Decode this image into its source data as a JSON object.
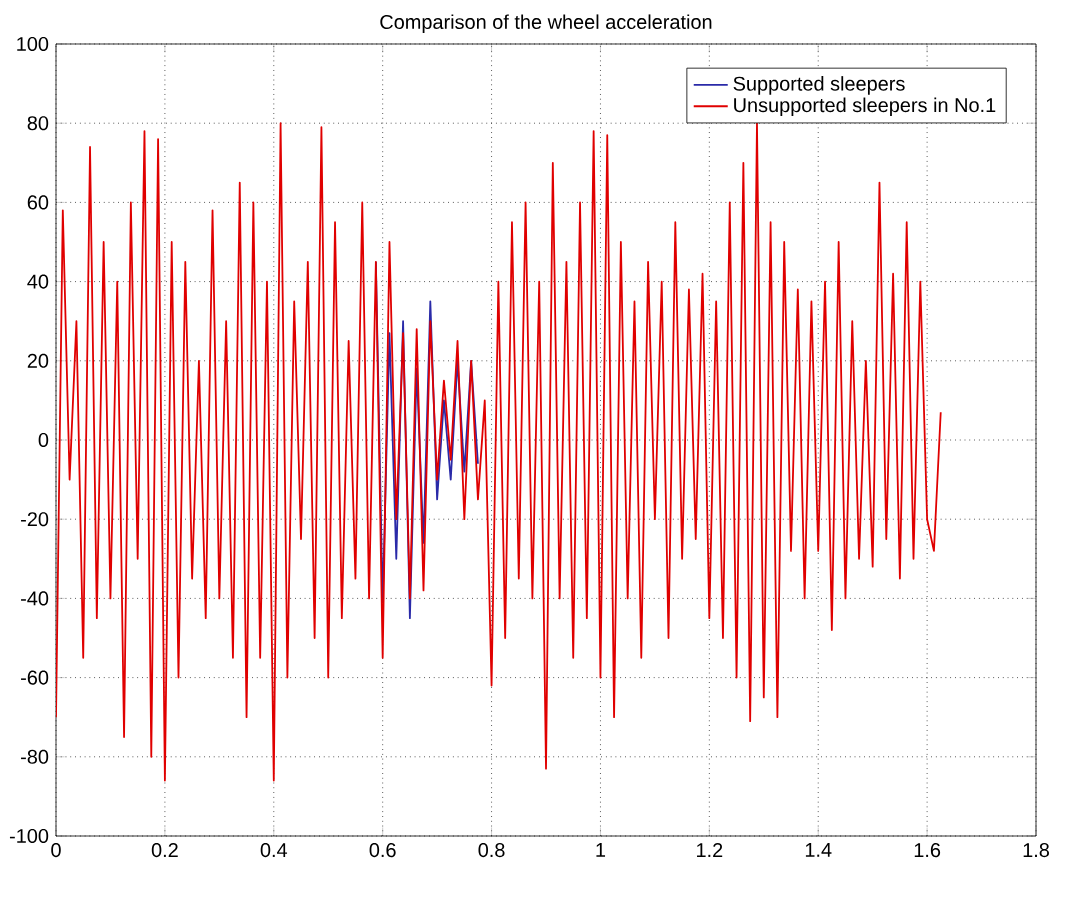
{
  "chart_data": {
    "type": "line",
    "title": "Comparison of the wheel acceleration",
    "x": [
      0,
      0.0125,
      0.025,
      0.0375,
      0.05,
      0.0625,
      0.075,
      0.0875,
      0.1,
      0.1125,
      0.125,
      0.1375,
      0.15,
      0.1625,
      0.175,
      0.1875,
      0.2,
      0.2125,
      0.225,
      0.2375,
      0.25,
      0.2625,
      0.275,
      0.2875,
      0.3,
      0.3125,
      0.325,
      0.3375,
      0.35,
      0.3625,
      0.375,
      0.3875,
      0.4,
      0.4125,
      0.425,
      0.4375,
      0.45,
      0.4625,
      0.475,
      0.4875,
      0.5,
      0.5125,
      0.525,
      0.5375,
      0.55,
      0.5625,
      0.575,
      0.5875,
      0.6,
      0.6125,
      0.625,
      0.6375,
      0.65,
      0.6625,
      0.675,
      0.6875,
      0.7,
      0.7125,
      0.725,
      0.7375,
      0.75,
      0.7625,
      0.775,
      0.7875,
      0.8,
      0.8125,
      0.825,
      0.8375,
      0.85,
      0.8625,
      0.875,
      0.8875,
      0.9,
      0.9125,
      0.925,
      0.9375,
      0.95,
      0.9625,
      0.975,
      0.9875,
      1,
      1.0125,
      1.025,
      1.0375,
      1.05,
      1.0625,
      1.075,
      1.0875,
      1.1,
      1.1125,
      1.125,
      1.1375,
      1.15,
      1.1625,
      1.175,
      1.1875,
      1.2,
      1.2125,
      1.225,
      1.2375,
      1.25,
      1.2625,
      1.275,
      1.2875,
      1.3,
      1.3125,
      1.325,
      1.3375,
      1.35,
      1.3625,
      1.375,
      1.3875,
      1.4,
      1.4125,
      1.425,
      1.4375,
      1.45,
      1.4625,
      1.475,
      1.4875,
      1.5,
      1.5125,
      1.525,
      1.5375,
      1.55,
      1.5625,
      1.575,
      1.5875,
      1.6,
      1.6125,
      1.625
    ],
    "series": [
      {
        "name": "Supported sleepers",
        "color": "#2a2aa8",
        "values": [
          null,
          null,
          null,
          null,
          null,
          null,
          null,
          null,
          null,
          null,
          null,
          null,
          null,
          null,
          null,
          null,
          null,
          null,
          null,
          null,
          null,
          null,
          null,
          null,
          null,
          null,
          null,
          null,
          null,
          null,
          null,
          null,
          null,
          null,
          null,
          null,
          null,
          null,
          null,
          null,
          null,
          null,
          null,
          null,
          null,
          null,
          null,
          45,
          -41,
          27,
          -30,
          30,
          -45,
          18,
          -26,
          35,
          -15,
          10,
          -10,
          20,
          -8,
          20,
          -6,
          null,
          null,
          null,
          null,
          null,
          null,
          null,
          null,
          null,
          null,
          null,
          null,
          null,
          null,
          null,
          null,
          null,
          null,
          null,
          null,
          null,
          null,
          null,
          null,
          null,
          null,
          null,
          null,
          null,
          null,
          null,
          null,
          null,
          null,
          null,
          null,
          null,
          null,
          null,
          null,
          null,
          null,
          null,
          null,
          null,
          null,
          null,
          null,
          null,
          null,
          null,
          null,
          null,
          null,
          null,
          null,
          null,
          null,
          null,
          null,
          null,
          null,
          null,
          null,
          null,
          null,
          null,
          null
        ]
      },
      {
        "name": "Unsupported sleepers in No.1",
        "color": "#e00000",
        "values": [
          -70,
          58,
          -10,
          30,
          -55,
          74,
          -45,
          50,
          -40,
          40,
          -75,
          60,
          -30,
          78,
          -80,
          76,
          -86,
          50,
          -60,
          45,
          -35,
          20,
          -45,
          58,
          -40,
          30,
          -55,
          65,
          -70,
          60,
          -55,
          40,
          -86,
          80,
          -60,
          35,
          -25,
          45,
          -50,
          79,
          -60,
          55,
          -45,
          25,
          -35,
          60,
          -40,
          45,
          -55,
          50,
          -20,
          27,
          -40,
          28,
          -38,
          30,
          -10,
          15,
          -5,
          25,
          -20,
          20,
          -15,
          10,
          -62,
          40,
          -50,
          55,
          -35,
          60,
          -40,
          40,
          -83,
          70,
          -40,
          45,
          -55,
          60,
          -45,
          78,
          -60,
          77,
          -70,
          50,
          -40,
          35,
          -55,
          45,
          -20,
          40,
          -50,
          55,
          -30,
          38,
          -25,
          42,
          -45,
          35,
          -50,
          60,
          -60,
          70,
          -71,
          80,
          -65,
          55,
          -70,
          50,
          -28,
          38,
          -40,
          35,
          -28,
          40,
          -48,
          50,
          -40,
          30,
          -30,
          20,
          -32,
          65,
          -25,
          42,
          -35,
          55,
          -30,
          40,
          -20,
          -28,
          7
        ]
      }
    ],
    "xlim": [
      0,
      1.8
    ],
    "ylim": [
      -100,
      100
    ],
    "xticks": [
      0,
      0.2,
      0.4,
      0.6,
      0.8,
      1,
      1.2,
      1.4,
      1.6,
      1.8
    ],
    "yticks": [
      -100,
      -80,
      -60,
      -40,
      -20,
      0,
      20,
      40,
      60,
      80,
      100
    ],
    "grid": true,
    "legend": "top right"
  }
}
